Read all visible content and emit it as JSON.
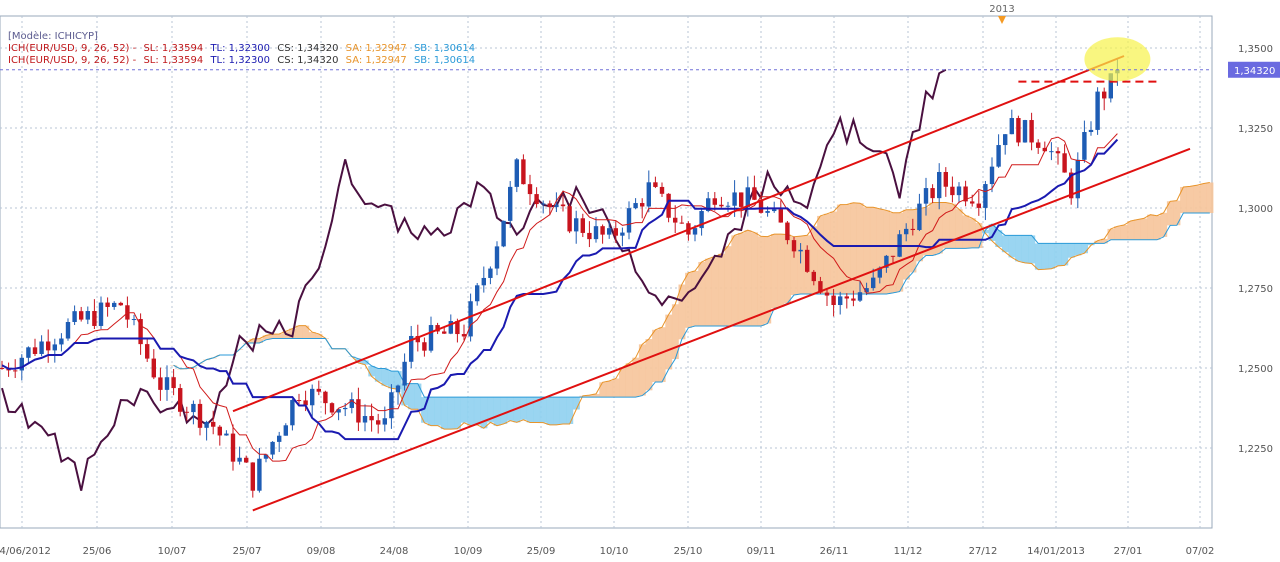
{
  "model_label": "[Modèle: ICHICYP]",
  "legend": [
    {
      "indicator": "ICH(EUR/USD, 9, 26, 52) -",
      "sl": "SL: 1,33594",
      "tl": "TL: 1,32300",
      "cs": "CS: 1,34320",
      "sa": "SA: 1,32947",
      "sb": "SB: 1,30614"
    },
    {
      "indicator": "ICH(EUR/USD, 9, 26, 52) -",
      "sl": "SL: 1,33594",
      "tl": "TL: 1,32300",
      "cs": "CS: 1,34320",
      "sa": "SA: 1,32947",
      "sb": "SB: 1,30614"
    }
  ],
  "colors": {
    "indicator": "#c0181b",
    "sl": "#c0181b",
    "tl": "#1a1ab0",
    "cs": "#333333",
    "sa": "#e8942a",
    "sb": "#2a9ad8",
    "up_candle": "#1e5cb4",
    "down_candle": "#c8141e",
    "tenkan": "#d01a1a",
    "kijun": "#1a1ab0",
    "chikou": "#4a1040",
    "cloud_bull": "#f6c49a",
    "cloud_bear": "#8fd0ef",
    "trendline": "#e01010",
    "grid": "#b8c6d6",
    "frame": "#9aaabb",
    "price_tag_bg": "#6a6ae0",
    "highlight": "#f6f24a",
    "year_marker": "#f59a23"
  },
  "year_marker": "2013",
  "chart_data": {
    "type": "candlestick",
    "instrument": "EUR/USD",
    "indicator": "ICH(EUR/USD, 9, 26, 52)",
    "ylim": [
      1.2,
      1.36
    ],
    "y_ticks": [
      "1,2250",
      "1,2500",
      "1,2750",
      "1,3000",
      "1,3250",
      "1,3500"
    ],
    "y_tick_values": [
      1.225,
      1.25,
      1.275,
      1.3,
      1.325,
      1.35
    ],
    "x_ticks": [
      "04/06/2012",
      "25/06",
      "10/07",
      "25/07",
      "09/08",
      "24/08",
      "10/09",
      "25/09",
      "10/10",
      "25/10",
      "09/11",
      "26/11",
      "11/12",
      "27/12",
      "14/01/2013",
      "27/01",
      "07/02"
    ],
    "current_price": "1,34320",
    "current_price_value": 1.3432,
    "values": {
      "SL": 1.33594,
      "TL": 1.323,
      "CS": 1.3432,
      "SA": 1.32947,
      "SB": 1.30614
    },
    "candle_count": 170,
    "candles_start_open": 1.25,
    "candles_end_close": 1.3432,
    "trendlines": [
      {
        "name": "upper-channel",
        "from": [
          35,
          1.2365
        ],
        "to": [
          170,
          1.3475
        ]
      },
      {
        "name": "lower-channel",
        "from": [
          38,
          1.2055
        ],
        "to": [
          180,
          1.3185
        ]
      }
    ],
    "resistance_level": 1.3395,
    "grid": true
  }
}
